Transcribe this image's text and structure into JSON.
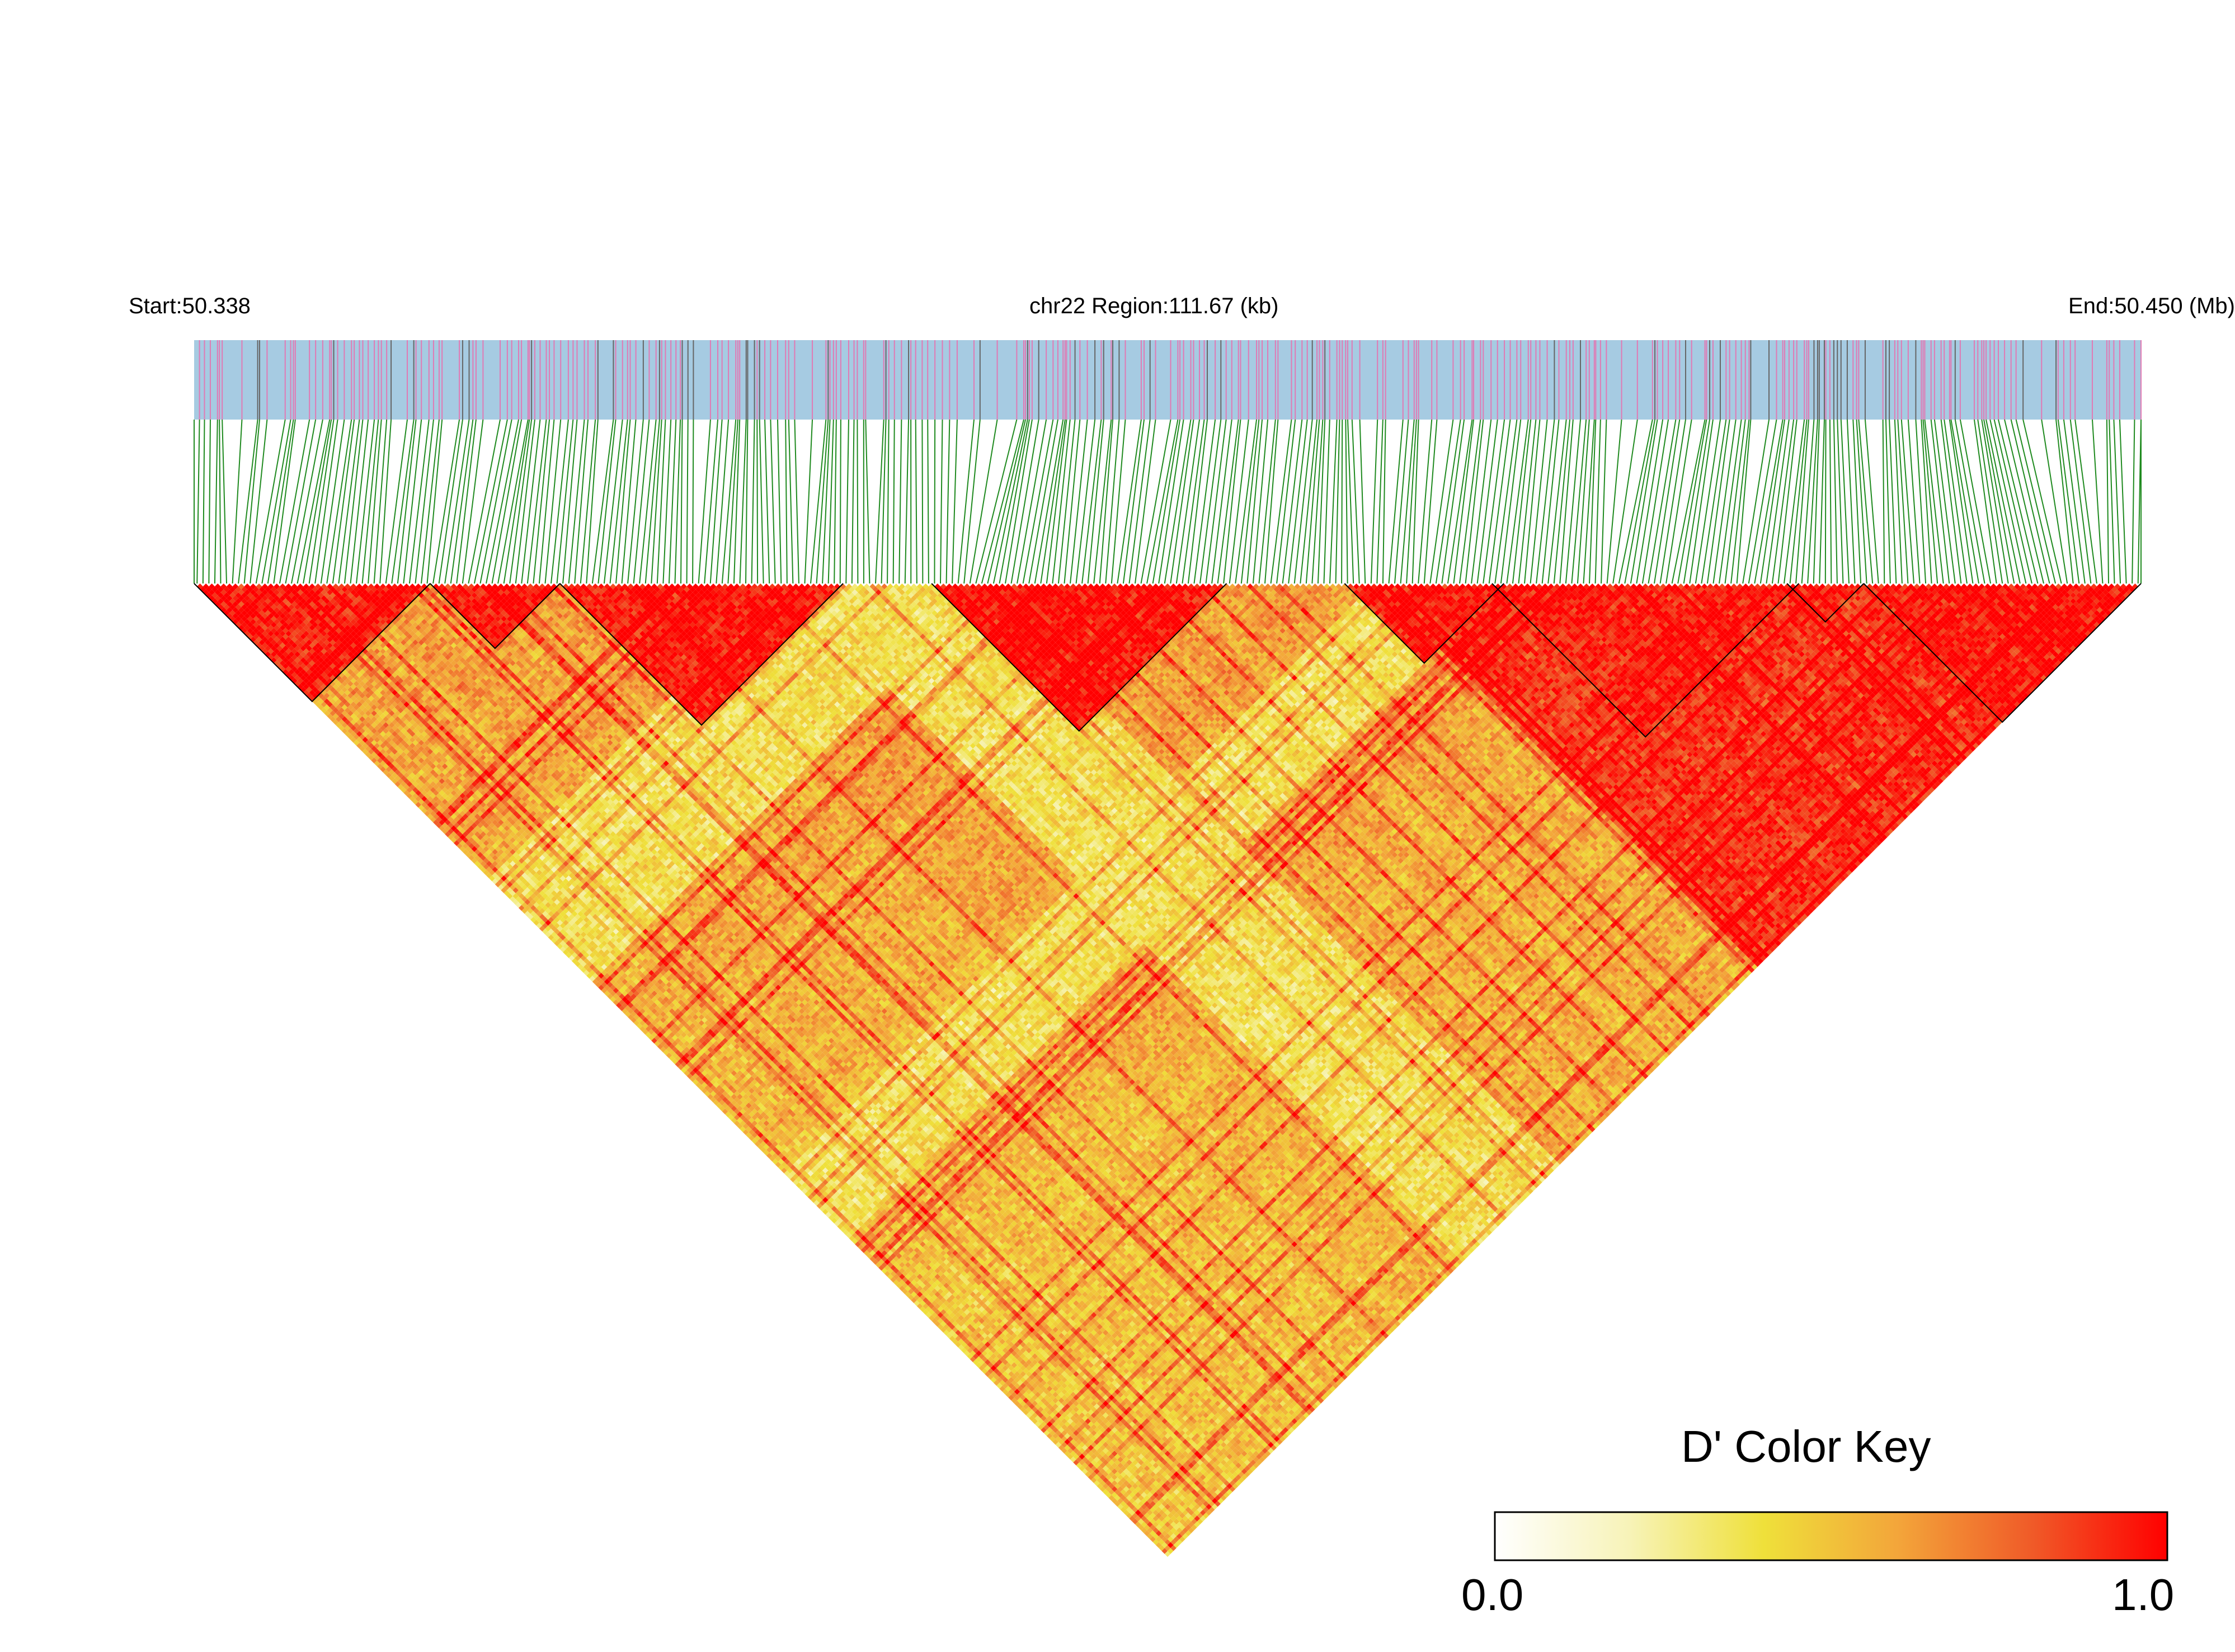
{
  "header": {
    "start_label": "Start:50.338",
    "region_label": "chr22 Region:111.67 (kb)",
    "end_label": "End:50.450 (Mb)"
  },
  "colors": {
    "track_background": "#a6cbe2",
    "track_tick_pink": "#e07ab4",
    "track_tick_gray": "#666666",
    "connector_lines": "#1f8a1f",
    "ld_low": "#ffffff",
    "ld_mid": "#efe03a",
    "ld_high": "#ff0000",
    "block_outline": "#000000"
  },
  "color_key": {
    "title": "D' Color Key",
    "min_label": "0.0",
    "max_label": "1.0",
    "gradient_stops": [
      "#ffffff",
      "#f7f3b8",
      "#efe03a",
      "#f3a53a",
      "#f05a28",
      "#ff0000"
    ]
  },
  "chart_data": {
    "type": "heatmap",
    "description_of_values": "Pairwise LD (D') between SNPs in a triangular heatmap",
    "metric": "D'",
    "chromosome": "chr22",
    "region_start_mb": 50.338,
    "region_end_mb": 50.45,
    "region_length_kb": 111.67,
    "value_range": [
      0.0,
      1.0
    ],
    "num_snps_approx": 330,
    "ld_blocks_snp_index_ranges": [
      [
        0,
        40
      ],
      [
        40,
        62
      ],
      [
        62,
        110
      ],
      [
        125,
        175
      ],
      [
        195,
        222
      ],
      [
        220,
        272
      ],
      [
        270,
        283
      ],
      [
        283,
        330
      ]
    ],
    "low_ld_regions_snp_index_ranges": [
      [
        100,
        135
      ],
      [
        200,
        222
      ]
    ]
  }
}
